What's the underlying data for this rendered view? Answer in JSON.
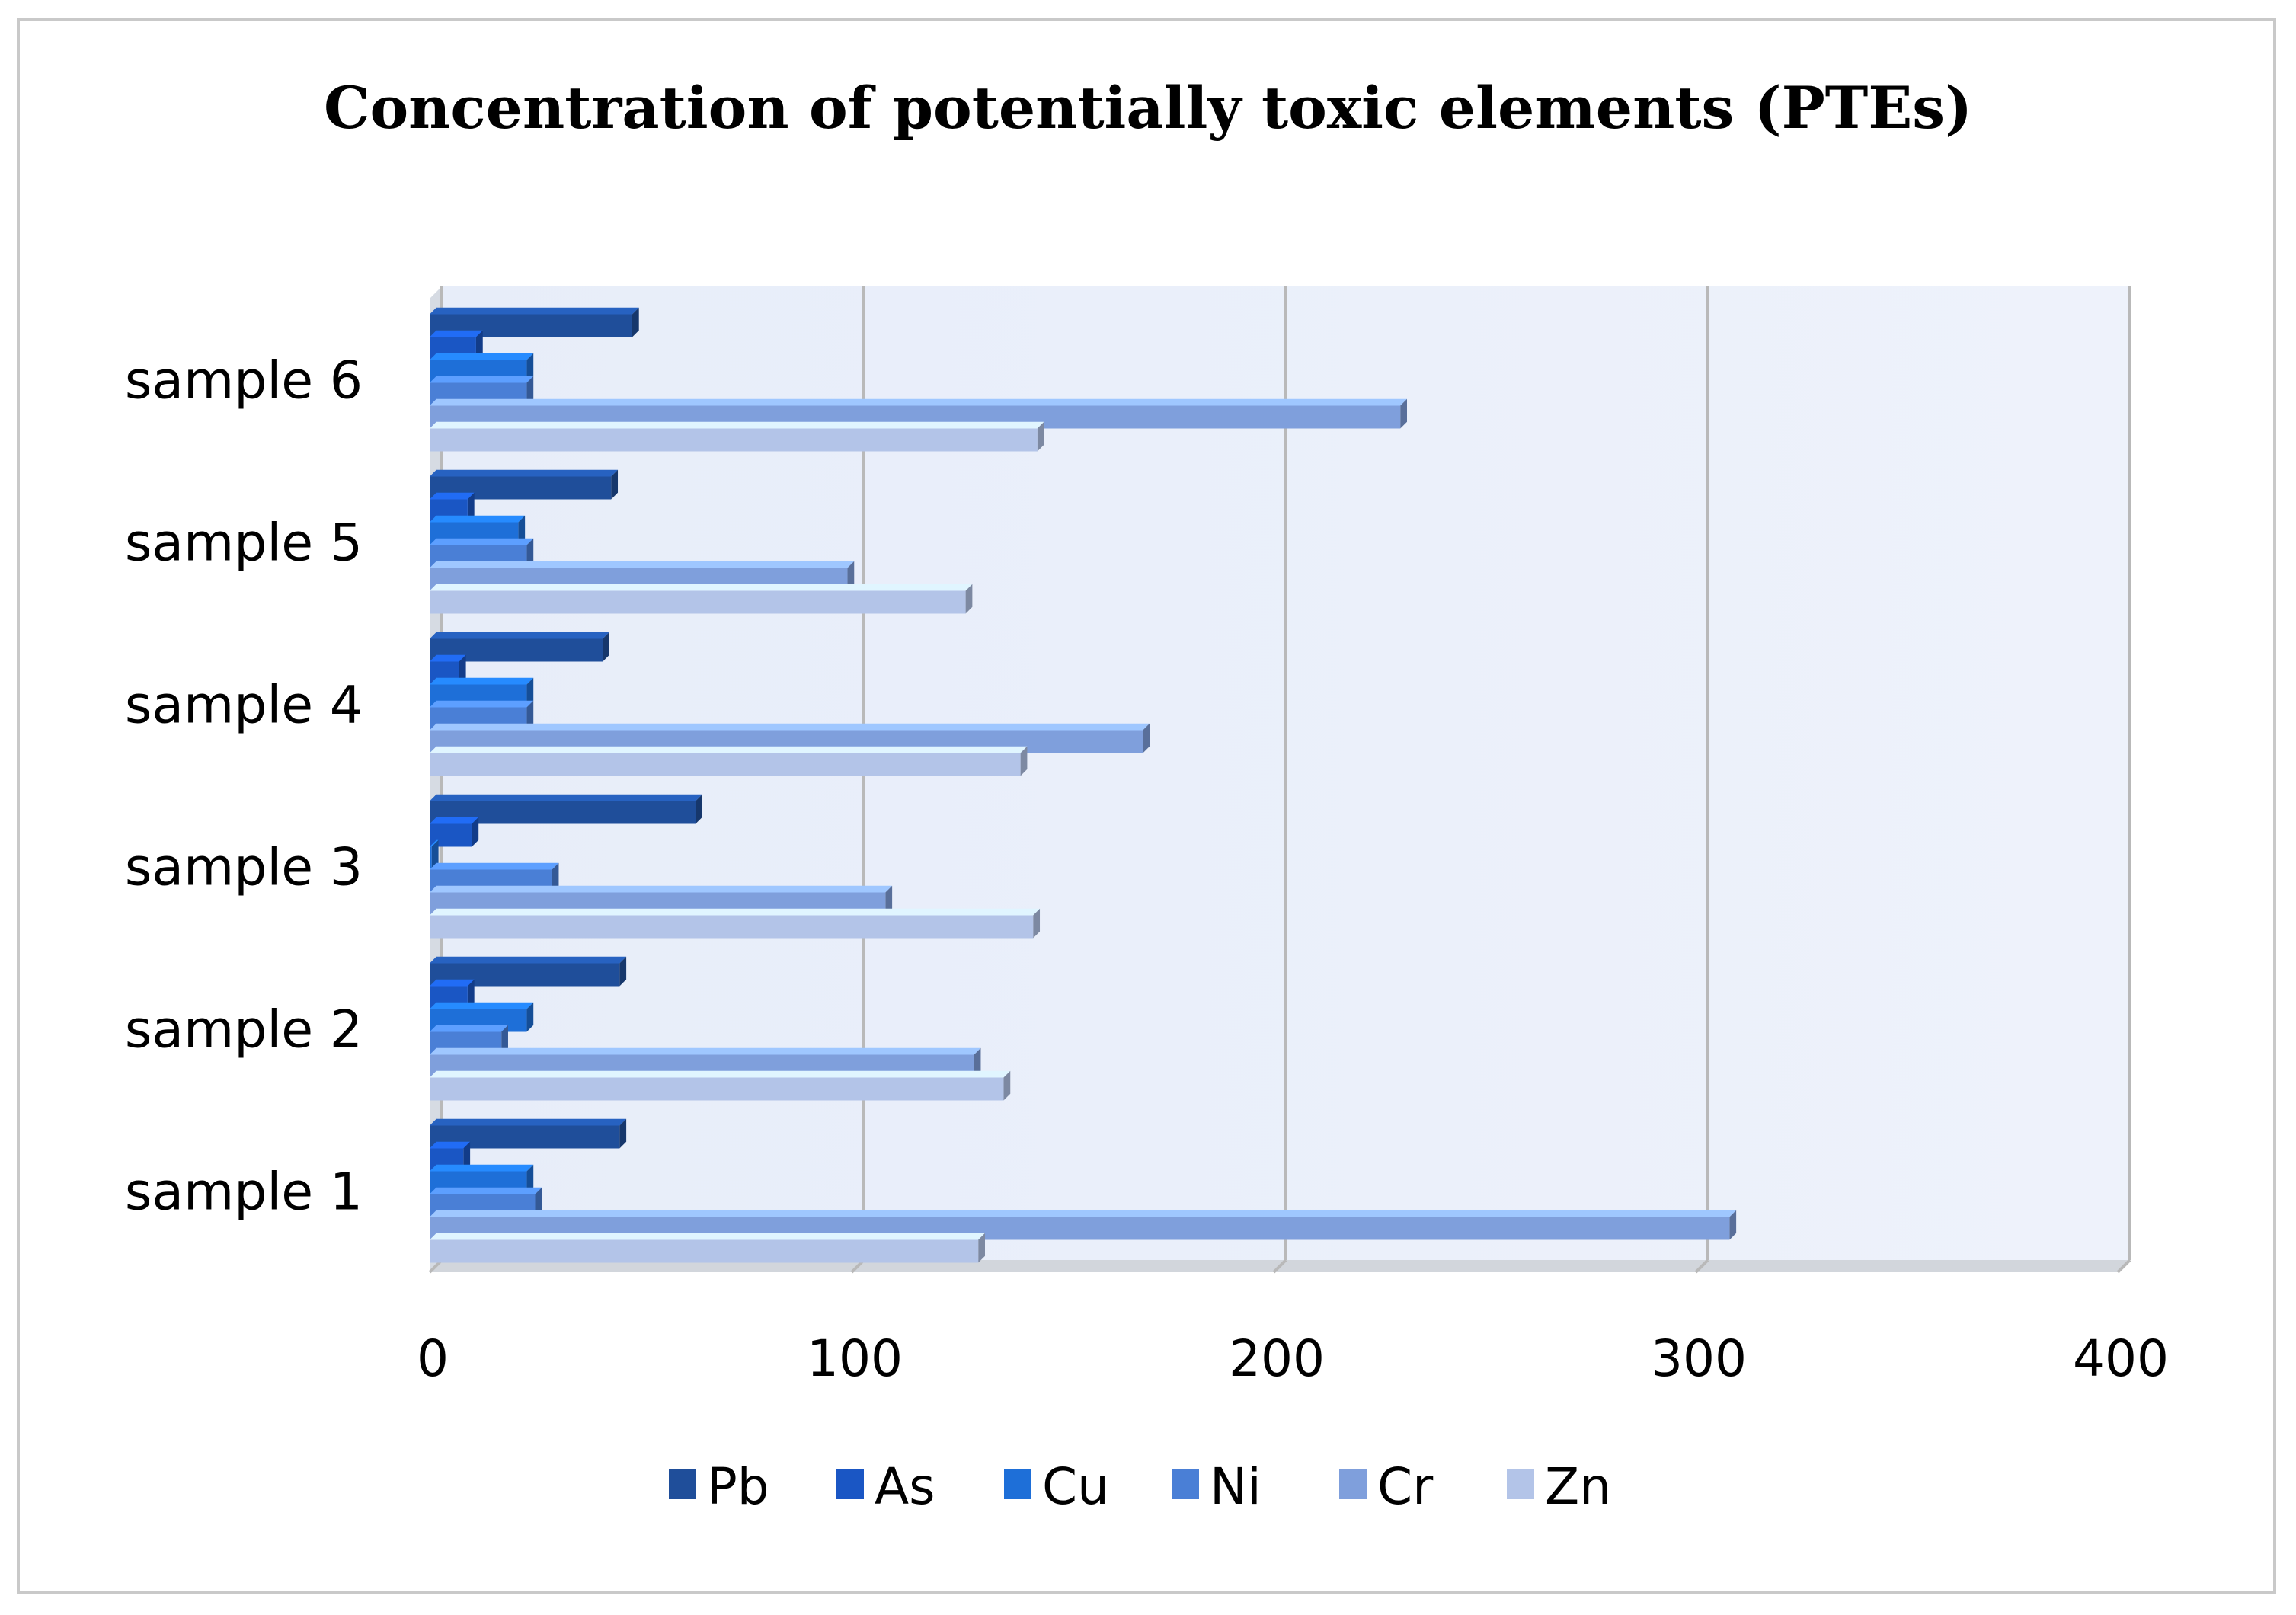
{
  "chart_data": {
    "type": "bar",
    "orientation": "horizontal",
    "title": "Concentration of potentially toxic elements (PTEs)",
    "categories": [
      "sample 1",
      "sample 2",
      "sample 3",
      "sample 4",
      "sample 5",
      "sample 6"
    ],
    "series": [
      {
        "name": "Pb",
        "color": "#1f4e9a",
        "values": [
          45,
          45,
          63,
          41,
          43,
          48
        ]
      },
      {
        "name": "As",
        "color": "#1a56c4",
        "values": [
          8,
          9,
          10,
          7,
          9,
          11
        ]
      },
      {
        "name": "Cu",
        "color": "#1e6fd8",
        "values": [
          23,
          23,
          0.5,
          23,
          21,
          23
        ]
      },
      {
        "name": "Ni",
        "color": "#4a7fd6",
        "values": [
          25,
          17,
          29,
          23,
          23,
          23
        ]
      },
      {
        "name": "Cr",
        "color": "#7f9fdc",
        "values": [
          308,
          129,
          108,
          169,
          99,
          230
        ]
      },
      {
        "name": "Zn",
        "color": "#b3c4e8",
        "values": [
          130,
          136,
          143,
          140,
          127,
          144
        ]
      }
    ],
    "xlim": [
      0,
      400
    ],
    "xticks": [
      "0",
      "100",
      "200",
      "300",
      "400"
    ],
    "xlabel": "",
    "ylabel": "",
    "grid": true,
    "legend_position": "bottom"
  }
}
